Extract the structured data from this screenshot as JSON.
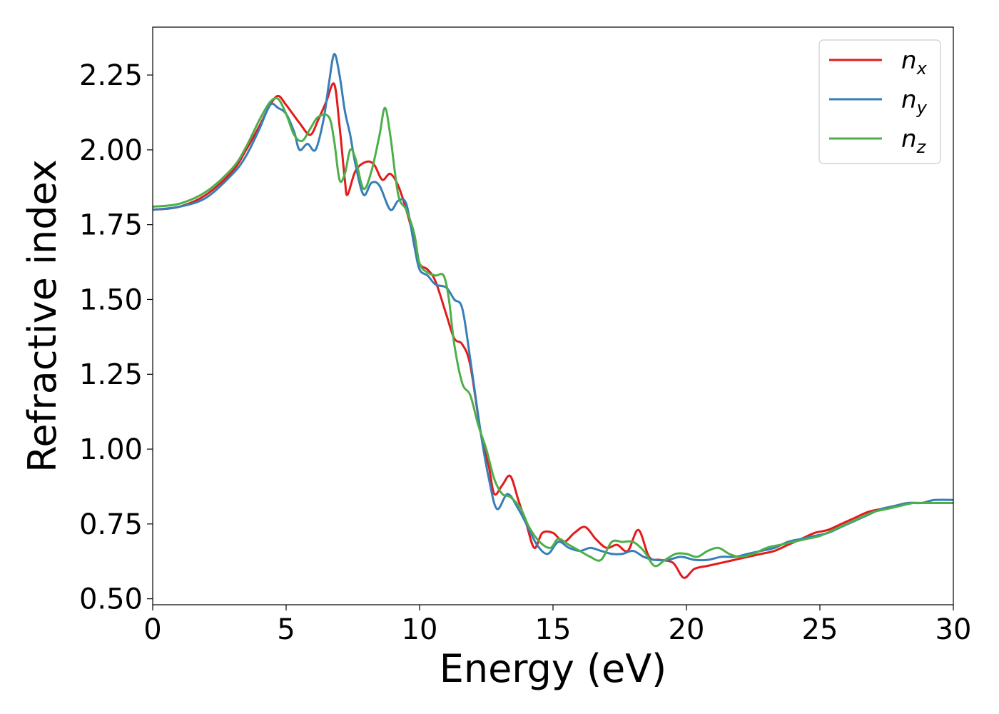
{
  "chart_data": {
    "type": "line",
    "title": "",
    "xlabel": "Energy (eV)",
    "ylabel": "Refractive index",
    "xlim": [
      0,
      30
    ],
    "ylim": [
      0.48,
      2.41
    ],
    "xticks": [
      0,
      5,
      10,
      15,
      20,
      25,
      30
    ],
    "xtick_labels": [
      "0",
      "5",
      "10",
      "15",
      "20",
      "25",
      "30"
    ],
    "yticks": [
      0.5,
      0.75,
      1.0,
      1.25,
      1.5,
      1.75,
      2.0,
      2.25
    ],
    "ytick_labels": [
      "0.50",
      "0.75",
      "1.00",
      "1.25",
      "1.50",
      "1.75",
      "2.00",
      "2.25"
    ],
    "grid": false,
    "legend_position": "top-right",
    "series": [
      {
        "name": "n",
        "subscript": "x",
        "color": "#e41a1c",
        "points": [
          [
            0,
            1.8
          ],
          [
            1,
            1.81
          ],
          [
            2,
            1.85
          ],
          [
            3,
            1.93
          ],
          [
            3.5,
            2.0
          ],
          [
            4,
            2.08
          ],
          [
            4.4,
            2.15
          ],
          [
            4.7,
            2.18
          ],
          [
            5,
            2.15
          ],
          [
            5.5,
            2.09
          ],
          [
            5.9,
            2.05
          ],
          [
            6.2,
            2.1
          ],
          [
            6.5,
            2.16
          ],
          [
            6.8,
            2.22
          ],
          [
            7.0,
            2.08
          ],
          [
            7.2,
            1.9
          ],
          [
            7.3,
            1.85
          ],
          [
            7.6,
            1.93
          ],
          [
            8.0,
            1.96
          ],
          [
            8.3,
            1.95
          ],
          [
            8.6,
            1.9
          ],
          [
            8.9,
            1.92
          ],
          [
            9.2,
            1.88
          ],
          [
            9.5,
            1.8
          ],
          [
            9.8,
            1.7
          ],
          [
            10.0,
            1.62
          ],
          [
            10.3,
            1.6
          ],
          [
            10.6,
            1.56
          ],
          [
            11.0,
            1.45
          ],
          [
            11.3,
            1.37
          ],
          [
            11.6,
            1.35
          ],
          [
            11.9,
            1.28
          ],
          [
            12.3,
            1.05
          ],
          [
            12.6,
            0.94
          ],
          [
            12.8,
            0.85
          ],
          [
            13.1,
            0.88
          ],
          [
            13.4,
            0.91
          ],
          [
            13.7,
            0.83
          ],
          [
            14.0,
            0.75
          ],
          [
            14.3,
            0.67
          ],
          [
            14.6,
            0.72
          ],
          [
            15.0,
            0.72
          ],
          [
            15.4,
            0.69
          ],
          [
            15.8,
            0.72
          ],
          [
            16.2,
            0.74
          ],
          [
            16.6,
            0.7
          ],
          [
            17.0,
            0.67
          ],
          [
            17.4,
            0.68
          ],
          [
            17.8,
            0.66
          ],
          [
            18.2,
            0.73
          ],
          [
            18.6,
            0.64
          ],
          [
            19.0,
            0.63
          ],
          [
            19.5,
            0.62
          ],
          [
            19.9,
            0.57
          ],
          [
            20.3,
            0.6
          ],
          [
            20.8,
            0.61
          ],
          [
            21.3,
            0.62
          ],
          [
            21.8,
            0.63
          ],
          [
            22.3,
            0.64
          ],
          [
            22.8,
            0.65
          ],
          [
            23.3,
            0.66
          ],
          [
            23.8,
            0.68
          ],
          [
            24.3,
            0.7
          ],
          [
            24.8,
            0.72
          ],
          [
            25.3,
            0.73
          ],
          [
            25.8,
            0.75
          ],
          [
            26.3,
            0.77
          ],
          [
            26.8,
            0.79
          ],
          [
            27.3,
            0.8
          ],
          [
            27.8,
            0.81
          ],
          [
            28.3,
            0.82
          ],
          [
            28.8,
            0.82
          ],
          [
            29.3,
            0.82
          ],
          [
            30,
            0.82
          ]
        ]
      },
      {
        "name": "n",
        "subscript": "y",
        "color": "#377eb8",
        "points": [
          [
            0,
            1.8
          ],
          [
            1,
            1.81
          ],
          [
            2,
            1.84
          ],
          [
            3,
            1.92
          ],
          [
            3.5,
            1.98
          ],
          [
            4,
            2.07
          ],
          [
            4.4,
            2.15
          ],
          [
            4.7,
            2.14
          ],
          [
            5,
            2.12
          ],
          [
            5.3,
            2.06
          ],
          [
            5.5,
            2.0
          ],
          [
            5.8,
            2.02
          ],
          [
            6.1,
            2.0
          ],
          [
            6.4,
            2.1
          ],
          [
            6.6,
            2.22
          ],
          [
            6.8,
            2.32
          ],
          [
            7.0,
            2.25
          ],
          [
            7.2,
            2.13
          ],
          [
            7.4,
            2.05
          ],
          [
            7.6,
            1.95
          ],
          [
            7.9,
            1.85
          ],
          [
            8.2,
            1.89
          ],
          [
            8.5,
            1.88
          ],
          [
            8.9,
            1.8
          ],
          [
            9.2,
            1.83
          ],
          [
            9.5,
            1.82
          ],
          [
            9.8,
            1.68
          ],
          [
            10.0,
            1.6
          ],
          [
            10.3,
            1.58
          ],
          [
            10.6,
            1.55
          ],
          [
            11.0,
            1.54
          ],
          [
            11.3,
            1.5
          ],
          [
            11.6,
            1.47
          ],
          [
            11.9,
            1.3
          ],
          [
            12.3,
            1.05
          ],
          [
            12.6,
            0.9
          ],
          [
            12.9,
            0.8
          ],
          [
            13.3,
            0.85
          ],
          [
            13.7,
            0.8
          ],
          [
            14.0,
            0.75
          ],
          [
            14.4,
            0.68
          ],
          [
            14.8,
            0.65
          ],
          [
            15.2,
            0.69
          ],
          [
            15.6,
            0.67
          ],
          [
            16.0,
            0.66
          ],
          [
            16.4,
            0.67
          ],
          [
            16.8,
            0.66
          ],
          [
            17.2,
            0.65
          ],
          [
            17.6,
            0.65
          ],
          [
            18.0,
            0.66
          ],
          [
            18.4,
            0.64
          ],
          [
            18.8,
            0.63
          ],
          [
            19.3,
            0.63
          ],
          [
            19.8,
            0.64
          ],
          [
            20.3,
            0.63
          ],
          [
            20.8,
            0.63
          ],
          [
            21.3,
            0.64
          ],
          [
            21.8,
            0.64
          ],
          [
            22.3,
            0.65
          ],
          [
            22.8,
            0.66
          ],
          [
            23.3,
            0.67
          ],
          [
            23.8,
            0.69
          ],
          [
            24.3,
            0.7
          ],
          [
            24.8,
            0.71
          ],
          [
            25.3,
            0.72
          ],
          [
            25.8,
            0.74
          ],
          [
            26.3,
            0.76
          ],
          [
            26.8,
            0.78
          ],
          [
            27.3,
            0.8
          ],
          [
            27.8,
            0.81
          ],
          [
            28.3,
            0.82
          ],
          [
            28.8,
            0.82
          ],
          [
            29.3,
            0.83
          ],
          [
            30,
            0.83
          ]
        ]
      },
      {
        "name": "n",
        "subscript": "z",
        "color": "#4daf4a",
        "points": [
          [
            0,
            1.81
          ],
          [
            1,
            1.82
          ],
          [
            2,
            1.86
          ],
          [
            3,
            1.94
          ],
          [
            3.5,
            2.01
          ],
          [
            4,
            2.1
          ],
          [
            4.4,
            2.16
          ],
          [
            4.7,
            2.17
          ],
          [
            5,
            2.12
          ],
          [
            5.3,
            2.05
          ],
          [
            5.6,
            2.03
          ],
          [
            5.9,
            2.07
          ],
          [
            6.2,
            2.11
          ],
          [
            6.6,
            2.11
          ],
          [
            6.8,
            2.03
          ],
          [
            7.0,
            1.9
          ],
          [
            7.2,
            1.92
          ],
          [
            7.4,
            2.0
          ],
          [
            7.6,
            1.97
          ],
          [
            7.9,
            1.87
          ],
          [
            8.2,
            1.93
          ],
          [
            8.5,
            2.05
          ],
          [
            8.7,
            2.14
          ],
          [
            8.9,
            2.05
          ],
          [
            9.2,
            1.85
          ],
          [
            9.5,
            1.8
          ],
          [
            9.8,
            1.72
          ],
          [
            10.0,
            1.62
          ],
          [
            10.3,
            1.59
          ],
          [
            10.6,
            1.58
          ],
          [
            10.9,
            1.58
          ],
          [
            11.1,
            1.5
          ],
          [
            11.3,
            1.35
          ],
          [
            11.6,
            1.22
          ],
          [
            11.9,
            1.18
          ],
          [
            12.2,
            1.08
          ],
          [
            12.5,
            1.0
          ],
          [
            12.8,
            0.9
          ],
          [
            13.1,
            0.85
          ],
          [
            13.4,
            0.84
          ],
          [
            13.8,
            0.8
          ],
          [
            14.1,
            0.74
          ],
          [
            14.5,
            0.69
          ],
          [
            14.9,
            0.67
          ],
          [
            15.2,
            0.7
          ],
          [
            15.6,
            0.68
          ],
          [
            16.0,
            0.66
          ],
          [
            16.4,
            0.64
          ],
          [
            16.8,
            0.63
          ],
          [
            17.2,
            0.69
          ],
          [
            17.6,
            0.69
          ],
          [
            18.0,
            0.69
          ],
          [
            18.4,
            0.66
          ],
          [
            18.8,
            0.61
          ],
          [
            19.2,
            0.63
          ],
          [
            19.6,
            0.65
          ],
          [
            20.0,
            0.65
          ],
          [
            20.4,
            0.64
          ],
          [
            20.8,
            0.66
          ],
          [
            21.2,
            0.67
          ],
          [
            21.6,
            0.65
          ],
          [
            22.0,
            0.64
          ],
          [
            22.5,
            0.65
          ],
          [
            23.0,
            0.67
          ],
          [
            23.5,
            0.68
          ],
          [
            24.0,
            0.69
          ],
          [
            24.5,
            0.7
          ],
          [
            25.0,
            0.71
          ],
          [
            25.5,
            0.73
          ],
          [
            26.0,
            0.75
          ],
          [
            26.5,
            0.77
          ],
          [
            27.0,
            0.79
          ],
          [
            27.5,
            0.8
          ],
          [
            28.0,
            0.81
          ],
          [
            28.5,
            0.82
          ],
          [
            29.0,
            0.82
          ],
          [
            29.5,
            0.82
          ],
          [
            30,
            0.82
          ]
        ]
      }
    ]
  }
}
